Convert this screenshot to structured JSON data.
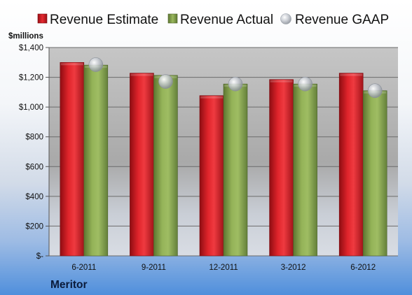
{
  "chart_data": {
    "type": "bar",
    "unit_label": "$millions",
    "company": "Meritor",
    "categories": [
      "6-2011",
      "9-2011",
      "12-2011",
      "3-2012",
      "6-2012"
    ],
    "series": [
      {
        "name": "Revenue Estimate",
        "kind": "bar",
        "color": "#d81c24",
        "values": [
          1300,
          1228,
          1077,
          1185,
          1228
        ]
      },
      {
        "name": "Revenue Actual",
        "kind": "bar",
        "color": "#8aa94e",
        "values": [
          1282,
          1213,
          1155,
          1155,
          1110
        ]
      },
      {
        "name": "Revenue GAAP",
        "kind": "marker",
        "color": "#b8bcc4",
        "values": [
          1285,
          1172,
          1155,
          1155,
          1110
        ]
      }
    ],
    "y_ticks": [
      {
        "value": 0,
        "label": "$-"
      },
      {
        "value": 200,
        "label": "$200"
      },
      {
        "value": 400,
        "label": "$400"
      },
      {
        "value": 600,
        "label": "$600"
      },
      {
        "value": 800,
        "label": "$800"
      },
      {
        "value": 1000,
        "label": "$1,000"
      },
      {
        "value": 1200,
        "label": "$1,200"
      },
      {
        "value": 1400,
        "label": "$1,400"
      }
    ],
    "ylim": [
      0,
      1400
    ],
    "grid": true,
    "legend_position": "top"
  }
}
